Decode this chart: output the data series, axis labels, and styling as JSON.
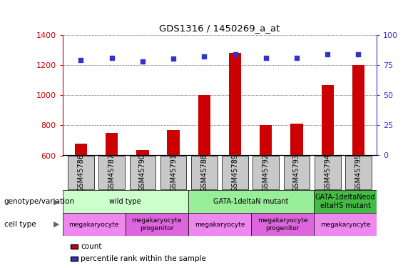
{
  "title": "GDS1316 / 1450269_a_at",
  "samples": [
    "GSM45786",
    "GSM45787",
    "GSM45790",
    "GSM45791",
    "GSM45788",
    "GSM45789",
    "GSM45792",
    "GSM45793",
    "GSM45794",
    "GSM45795"
  ],
  "counts": [
    680,
    750,
    635,
    770,
    1000,
    1280,
    800,
    810,
    1065,
    1200
  ],
  "percentile_ranks": [
    79,
    81,
    78,
    80,
    82,
    84,
    81,
    81,
    84,
    84
  ],
  "ylim_left": [
    600,
    1400
  ],
  "ylim_right": [
    0,
    100
  ],
  "yticks_left": [
    600,
    800,
    1000,
    1200,
    1400
  ],
  "yticks_right": [
    0,
    25,
    50,
    75,
    100
  ],
  "bar_color": "#cc0000",
  "scatter_color": "#3333cc",
  "genotype_groups": [
    {
      "label": "wild type",
      "start": 0,
      "end": 3,
      "color": "#ccffcc"
    },
    {
      "label": "GATA-1deltaN mutant",
      "start": 4,
      "end": 7,
      "color": "#99ee99"
    },
    {
      "label": "GATA-1deltaNeod\neltaHS mutant",
      "start": 8,
      "end": 9,
      "color": "#44bb44"
    }
  ],
  "cell_type_groups": [
    {
      "label": "megakaryocyte",
      "start": 0,
      "end": 1,
      "color": "#ee88ee"
    },
    {
      "label": "megakaryocyte\nprogenitor",
      "start": 2,
      "end": 3,
      "color": "#dd66dd"
    },
    {
      "label": "megakaryocyte",
      "start": 4,
      "end": 5,
      "color": "#ee88ee"
    },
    {
      "label": "megakaryocyte\nprogenitor",
      "start": 6,
      "end": 7,
      "color": "#dd66dd"
    },
    {
      "label": "megakaryocyte",
      "start": 8,
      "end": 9,
      "color": "#ee88ee"
    }
  ],
  "left_label_color": "#cc0000",
  "right_label_color": "#3333cc",
  "xtick_bg_color": "#c8c8c8",
  "label_genotype": "genotype/variation",
  "label_celltype": "cell type",
  "legend_count_color": "#cc0000",
  "legend_pct_color": "#3333cc",
  "legend_count_label": "count",
  "legend_pct_label": "percentile rank within the sample"
}
